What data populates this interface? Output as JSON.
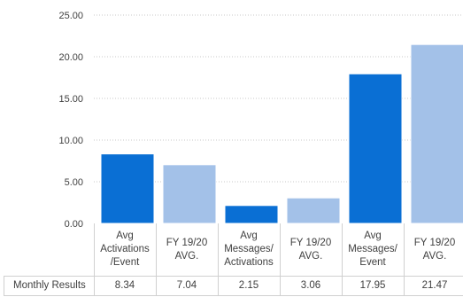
{
  "chart_data": {
    "type": "bar",
    "categories": [
      "Avg Activations /Event",
      "FY 19/20 AVG.",
      "Avg Messages/ Activations",
      "FY 19/20 AVG.",
      "Avg Messages/ Event",
      "FY 19/20 AVG."
    ],
    "category_lines": [
      [
        "Avg",
        "Activations",
        "/Event"
      ],
      [
        "FY 19/20",
        "AVG."
      ],
      [
        "Avg",
        "Messages/",
        "Activations"
      ],
      [
        "FY 19/20",
        "AVG."
      ],
      [
        "Avg",
        "Messages/",
        "Event"
      ],
      [
        "FY 19/20",
        "AVG."
      ]
    ],
    "series": [
      {
        "name": "Monthly Results",
        "values": [
          8.34,
          7.04,
          2.15,
          3.06,
          17.95,
          21.47
        ],
        "display_values": [
          "8.34",
          "7.04",
          "2.15",
          "3.06",
          "17.95",
          "21.47"
        ]
      }
    ],
    "bar_colors": [
      "#0a6fd4",
      "#a3c1e8",
      "#0a6fd4",
      "#a3c1e8",
      "#0a6fd4",
      "#a3c1e8"
    ],
    "ylim": [
      0,
      25
    ],
    "yticks": [
      "0.00",
      "5.00",
      "10.00",
      "15.00",
      "20.00",
      "25.00"
    ],
    "grid": true,
    "gridline_style": "dotted",
    "data_table": true,
    "title": "",
    "xlabel": "",
    "ylabel": ""
  }
}
